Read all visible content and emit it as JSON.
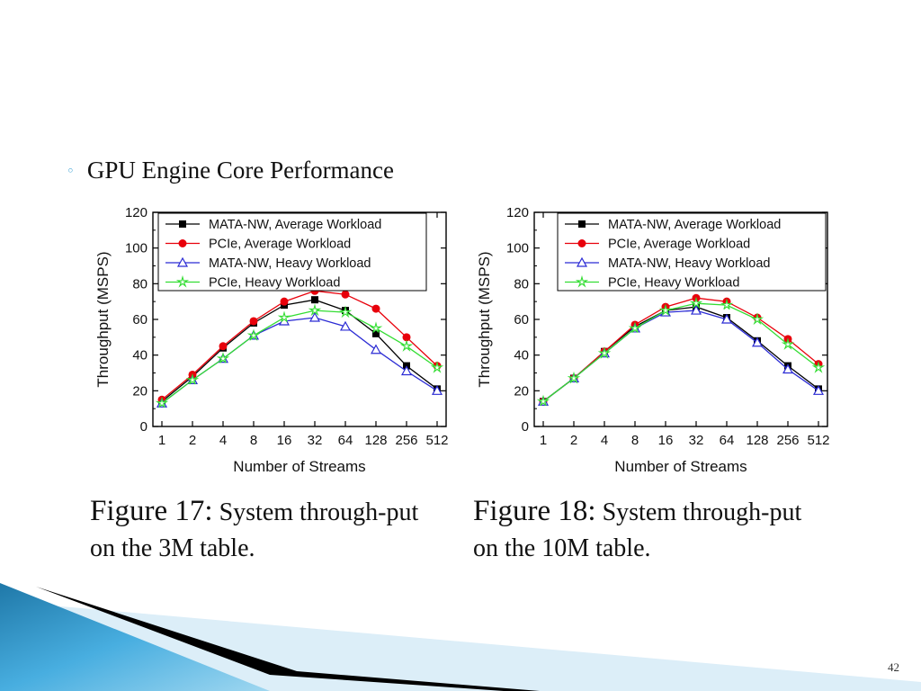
{
  "slide": {
    "bullet_glyph": "◦",
    "heading": "GPU Engine Core Performance",
    "slide_number": "42",
    "captions": [
      {
        "figure": "Figure 17:",
        "text": "System through-put on the 3M table."
      },
      {
        "figure": "Figure 18:",
        "text": "System through-put on the 10M table."
      }
    ]
  },
  "chart_data": [
    {
      "type": "line",
      "xlabel": "Number of Streams",
      "ylabel": "Throughput (MSPS)",
      "categories": [
        "1",
        "2",
        "4",
        "8",
        "16",
        "32",
        "64",
        "128",
        "256",
        "512"
      ],
      "ylim": [
        0,
        120
      ],
      "yticks": [
        0,
        20,
        40,
        60,
        80,
        100,
        120
      ],
      "legend_position": "top-left",
      "series": [
        {
          "name": "MATA-NW, Average Workload",
          "color": "#000000",
          "marker": "square",
          "values": [
            14,
            28,
            44,
            58,
            68,
            71,
            65,
            52,
            34,
            21
          ]
        },
        {
          "name": "PCIe, Average Workload",
          "color": "#e8000b",
          "marker": "circle",
          "values": [
            15,
            29,
            45,
            59,
            70,
            76,
            74,
            66,
            50,
            34
          ]
        },
        {
          "name": "MATA-NW, Heavy Workload",
          "color": "#2b2bd4",
          "marker": "triangle",
          "values": [
            13,
            26,
            38,
            51,
            59,
            61,
            56,
            43,
            31,
            20
          ]
        },
        {
          "name": "PCIe, Heavy Workload",
          "color": "#33dd33",
          "marker": "star",
          "values": [
            13,
            26,
            38,
            51,
            61,
            65,
            64,
            55,
            45,
            33
          ]
        }
      ]
    },
    {
      "type": "line",
      "xlabel": "Number of Streams",
      "ylabel": "Throughput (MSPS)",
      "categories": [
        "1",
        "2",
        "4",
        "8",
        "16",
        "32",
        "64",
        "128",
        "256",
        "512"
      ],
      "ylim": [
        0,
        120
      ],
      "yticks": [
        0,
        20,
        40,
        60,
        80,
        100,
        120
      ],
      "legend_position": "top-right",
      "series": [
        {
          "name": "MATA-NW, Average Workload",
          "color": "#000000",
          "marker": "square",
          "values": [
            14,
            27,
            42,
            56,
            65,
            67,
            61,
            48,
            34,
            21
          ]
        },
        {
          "name": "PCIe, Average Workload",
          "color": "#e8000b",
          "marker": "circle",
          "values": [
            14,
            27,
            42,
            57,
            67,
            72,
            70,
            61,
            49,
            35
          ]
        },
        {
          "name": "MATA-NW, Heavy Workload",
          "color": "#2b2bd4",
          "marker": "triangle",
          "values": [
            14,
            27,
            41,
            55,
            64,
            65,
            60,
            47,
            32,
            20
          ]
        },
        {
          "name": "PCIe, Heavy Workload",
          "color": "#33dd33",
          "marker": "star",
          "values": [
            14,
            27,
            41,
            55,
            65,
            69,
            68,
            60,
            46,
            33
          ]
        }
      ]
    }
  ]
}
